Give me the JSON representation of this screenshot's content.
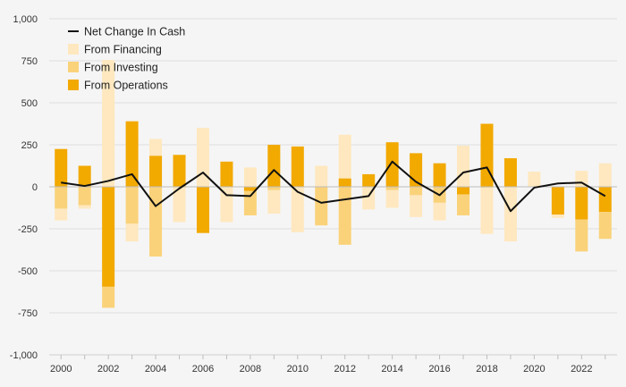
{
  "chart_data": {
    "type": "bar",
    "subtype": "stacked-bar-with-line",
    "x": [
      2000,
      2001,
      2002,
      2003,
      2004,
      2005,
      2006,
      2007,
      2008,
      2009,
      2010,
      2011,
      2012,
      2013,
      2014,
      2015,
      2016,
      2017,
      2018,
      2019,
      2020,
      2021,
      2022,
      2023
    ],
    "x_tick_labels": [
      "2000",
      "2002",
      "2004",
      "2006",
      "2008",
      "2010",
      "2012",
      "2014",
      "2016",
      "2018",
      "2020",
      "2022"
    ],
    "y_tick_labels": [
      "1,000",
      "750",
      "500",
      "250",
      "0",
      "-250",
      "-500",
      "-750",
      "-1,000"
    ],
    "ylim": [
      -1000,
      1000
    ],
    "y_ticks": [
      1000,
      750,
      500,
      250,
      0,
      -250,
      -500,
      -750,
      -1000
    ],
    "grid": true,
    "legend_position": "top-left",
    "series": [
      {
        "name": "From Operations",
        "color": "#f2a900",
        "values": [
          225,
          125,
          -595,
          390,
          185,
          190,
          -275,
          150,
          -25,
          250,
          240,
          0,
          50,
          75,
          265,
          200,
          140,
          -45,
          375,
          170,
          0,
          -165,
          -195,
          -150
        ]
      },
      {
        "name": "From Investing",
        "color": "#fad27a",
        "values": [
          -130,
          -110,
          -125,
          -220,
          -415,
          0,
          0,
          0,
          -145,
          -20,
          0,
          -230,
          -345,
          0,
          -20,
          -50,
          -95,
          -125,
          -5,
          0,
          0,
          0,
          -190,
          -160
        ]
      },
      {
        "name": "From Financing",
        "color": "#ffe8bf",
        "values": [
          -70,
          -20,
          755,
          -105,
          100,
          -210,
          350,
          -210,
          115,
          -140,
          -270,
          125,
          260,
          -135,
          -105,
          -130,
          -105,
          245,
          -275,
          -325,
          90,
          -20,
          95,
          140
        ]
      }
    ],
    "line": {
      "name": "Net Change In Cash",
      "color": "#111111",
      "values": [
        25,
        5,
        35,
        75,
        -115,
        -10,
        85,
        -50,
        -55,
        100,
        -30,
        -95,
        -75,
        -55,
        150,
        30,
        -50,
        85,
        115,
        -145,
        -5,
        20,
        25,
        -55
      ]
    }
  }
}
